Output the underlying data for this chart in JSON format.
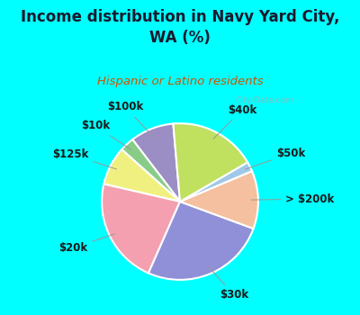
{
  "title": "Income distribution in Navy Yard City,\nWA (%)",
  "subtitle": "Hispanic or Latino residents",
  "title_color": "#1a1a2e",
  "subtitle_color": "#cc5500",
  "bg_top_color": "#00ffff",
  "slices": [
    {
      "label": "$100k",
      "value": 9,
      "color": "#9b8ec4"
    },
    {
      "label": "$10k",
      "value": 3,
      "color": "#88cc88"
    },
    {
      "label": "$125k",
      "value": 8,
      "color": "#f0f080"
    },
    {
      "label": "$20k",
      "value": 22,
      "color": "#f4a0b0"
    },
    {
      "label": "$30k",
      "value": 26,
      "color": "#9090d8"
    },
    {
      "label": "> $200k",
      "value": 12,
      "color": "#f4c0a0"
    },
    {
      "label": "$50k",
      "value": 2,
      "color": "#a0c8e8"
    },
    {
      "label": "$40k",
      "value": 18,
      "color": "#c0e060"
    }
  ],
  "label_fontsize": 8.5,
  "label_fontweight": "bold",
  "label_color": "#1a1a1a",
  "pie_edge_color": "white",
  "pie_edge_width": 1.5,
  "startangle": 95,
  "chart_bg_color": "#e8f5ee",
  "watermark": "City-Data.com",
  "watermark_color": "#aaaaaa"
}
